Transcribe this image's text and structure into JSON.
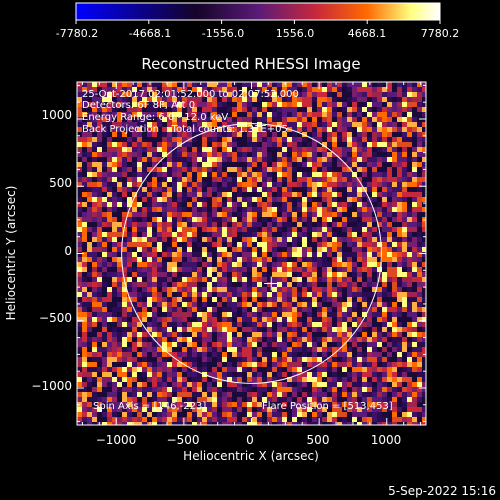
{
  "colorbar": {
    "min_label": "-7780.2",
    "ticks": [
      "-7780.2",
      "-4668.1",
      "-1556.0",
      "1556.0",
      "4668.1",
      "7780.2"
    ],
    "tick_values": [
      -7780.2,
      -4668.1,
      -1556.0,
      1556.0,
      4668.1,
      7780.2
    ],
    "range": [
      -7780.2,
      7780.2
    ],
    "colors": [
      "#0000ff",
      "#000000",
      "#5a1a78",
      "#c8283c",
      "#ff6a00",
      "#ffff80",
      "#ffffff"
    ]
  },
  "chart_data": {
    "type": "heatmap",
    "title": "Reconstructed RHESSI Image",
    "xlabel": "Heliocentric X (arcsec)",
    "ylabel": "Heliocentric Y (arcsec)",
    "xlim": [
      -1290,
      1290
    ],
    "ylim": [
      -1275,
      1275
    ],
    "xticks": [
      -1000,
      -500,
      0,
      500,
      1000
    ],
    "yticks": [
      -1000,
      -500,
      0,
      500,
      1000
    ],
    "xtick_labels": [
      "−1000",
      "−500",
      "0",
      "500",
      "1000"
    ],
    "ytick_labels": [
      "−1000",
      "−500",
      "0",
      "500",
      "1000"
    ],
    "solar_limb_radius": 960,
    "solar_limb_center": [
      0,
      0
    ],
    "marker": {
      "type": "cross",
      "x": 146,
      "y": -223
    },
    "annotations": [
      "25-Oct-2017 02:01:52.000 to 02:07:52.000",
      "Detectors: 6F 8F, Att 0",
      "Energy Range: 6.0 - 12.0 keV",
      "Back Projection    Total counts: 1.31E+05"
    ],
    "spin_axis": "Spin Axis = [146,-223]",
    "flare_position": "Flare Position = [513,453]",
    "grid": false
  },
  "footer": {
    "timestamp": "5-Sep-2022 15:16"
  }
}
